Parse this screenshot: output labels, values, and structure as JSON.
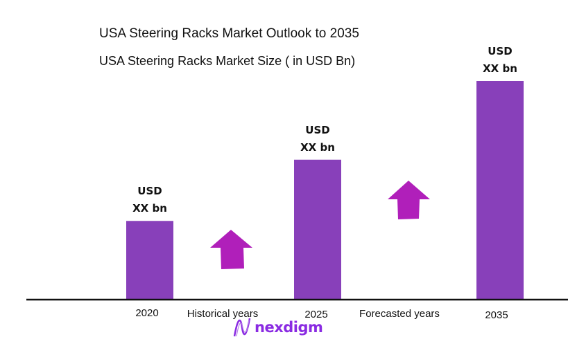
{
  "chart_data": {
    "type": "bar",
    "title": "USA Steering Racks Market Outlook to 2035",
    "subtitle": "USA Steering Racks Market Size  ( in USD Bn)",
    "categories": [
      "2020",
      "2025",
      "2035"
    ],
    "values": [
      36,
      64,
      100
    ],
    "data_labels": [
      [
        "USD",
        "XX bn"
      ],
      [
        "USD",
        "XX bn"
      ],
      [
        "USD",
        "XX bn"
      ]
    ],
    "annotations": [
      "Historical years",
      "Forecasted years"
    ],
    "grid": false,
    "bar_color": "#8840BA",
    "arrow_color": "#B01FBA"
  },
  "logo": {
    "text": "nexdigm"
  }
}
